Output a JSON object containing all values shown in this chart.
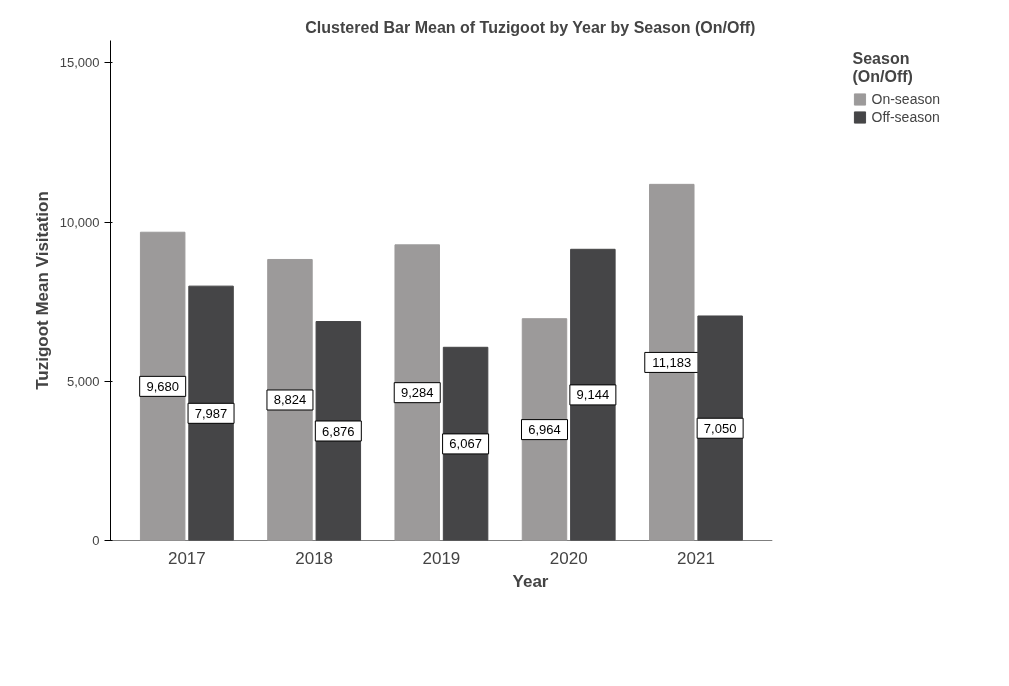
{
  "chart_data": {
    "type": "bar",
    "title": "Clustered Bar Mean of Tuzigoot by Year by Season (On/Off)",
    "xlabel": "Year",
    "ylabel": "Tuzigoot Mean Visitation",
    "legend_title": "Season\n(On/Off)",
    "categories": [
      "2017",
      "2018",
      "2019",
      "2020",
      "2021"
    ],
    "series": [
      {
        "name": "On-season",
        "color": "#9c9a9a",
        "values": [
          9680,
          8824,
          9284,
          6964,
          11183
        ],
        "value_labels": [
          "9,680",
          "8,824",
          "9,284",
          "6,964",
          "11,183"
        ]
      },
      {
        "name": "Off-season",
        "color": "#454547",
        "values": [
          7987,
          6876,
          6067,
          9144,
          7050
        ],
        "value_labels": [
          "7,987",
          "6,876",
          "6,067",
          "9,144",
          "7,050"
        ]
      }
    ],
    "ylim": [
      0,
      15700
    ],
    "yticks": [
      {
        "value": 0,
        "label": "0"
      },
      {
        "value": 5000,
        "label": "5,000"
      },
      {
        "value": 10000,
        "label": "10,000"
      },
      {
        "value": 15000,
        "label": "15,000"
      }
    ],
    "legend": "top right",
    "grid": false
  }
}
